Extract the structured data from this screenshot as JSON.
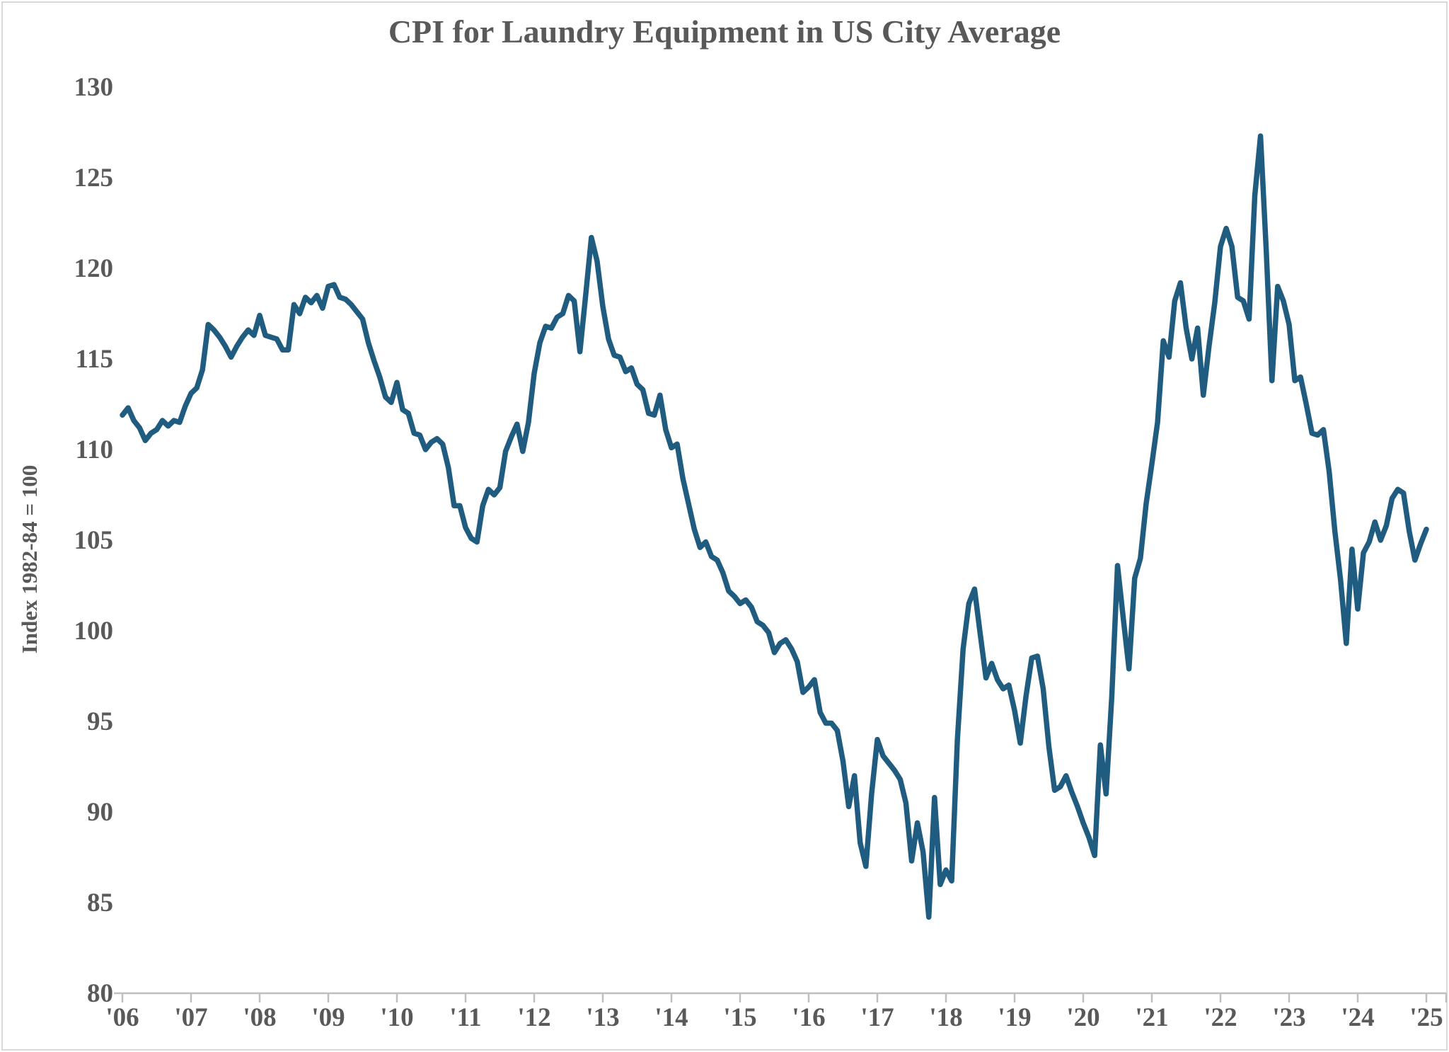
{
  "title": "CPI for Laundry Equipment in US City Average",
  "colors": {
    "line": "#1F5C80",
    "text": "#595959",
    "axis": "#BFBFBF",
    "frame": "#D9D9D9",
    "background": "#FFFFFF"
  },
  "y_axis": {
    "label": "Index 1982-84 = 100",
    "min": 80,
    "max": 130,
    "tick_step": 5,
    "tick_labels": [
      "80",
      "85",
      "90",
      "95",
      "100",
      "105",
      "110",
      "115",
      "120",
      "125",
      "130"
    ]
  },
  "x_axis": {
    "start_year": 2006,
    "end_year": 2025,
    "tick_labels": [
      "'06",
      "'07",
      "'08",
      "'09",
      "'10",
      "'11",
      "'12",
      "'13",
      "'14",
      "'15",
      "'16",
      "'17",
      "'18",
      "'19",
      "'20",
      "'21",
      "'22",
      "'23",
      "'24",
      "'25"
    ]
  },
  "chart_data": {
    "type": "line",
    "title": "CPI for Laundry Equipment in US City Average",
    "xlabel": "",
    "ylabel": "Index 1982-84 = 100",
    "ylim": [
      80,
      130
    ],
    "x_start": "2006-01",
    "x_end": "2025-01",
    "frequency": "monthly",
    "grid": false,
    "legend_position": "none",
    "series": [
      {
        "name": "CPI for Laundry Equipment in US City Average",
        "color": "#1F5C80",
        "values": [
          111.9,
          112.3,
          111.6,
          111.2,
          110.5,
          110.9,
          111.1,
          111.6,
          111.3,
          111.6,
          111.5,
          112.4,
          113.1,
          113.4,
          114.4,
          116.9,
          116.6,
          116.2,
          115.7,
          115.1,
          115.7,
          116.2,
          116.6,
          116.3,
          117.4,
          116.3,
          116.2,
          116.1,
          115.5,
          115.5,
          118.0,
          117.5,
          118.4,
          118.1,
          118.5,
          117.8,
          119.0,
          119.1,
          118.4,
          118.3,
          118.0,
          117.6,
          117.2,
          115.9,
          114.9,
          114.0,
          112.9,
          112.6,
          113.7,
          112.2,
          112.0,
          110.9,
          110.8,
          110.0,
          110.4,
          110.6,
          110.3,
          109.0,
          106.9,
          106.9,
          105.7,
          105.1,
          104.9,
          106.9,
          107.8,
          107.5,
          107.9,
          109.9,
          110.7,
          111.4,
          109.9,
          111.5,
          114.2,
          115.9,
          116.8,
          116.7,
          117.3,
          117.5,
          118.5,
          118.2,
          115.4,
          118.5,
          121.7,
          120.4,
          117.9,
          116.1,
          115.2,
          115.1,
          114.3,
          114.5,
          113.6,
          113.3,
          112.0,
          111.9,
          113.0,
          111.1,
          110.1,
          110.3,
          108.4,
          107.0,
          105.6,
          104.6,
          104.9,
          104.1,
          103.9,
          103.2,
          102.2,
          101.9,
          101.5,
          101.7,
          101.3,
          100.5,
          100.3,
          99.9,
          98.8,
          99.3,
          99.5,
          99.0,
          98.3,
          96.6,
          96.9,
          97.3,
          95.5,
          94.9,
          94.9,
          94.5,
          92.8,
          90.3,
          92.0,
          88.3,
          87.0,
          91.0,
          94.0,
          93.1,
          92.7,
          92.3,
          91.8,
          90.5,
          87.3,
          89.4,
          87.8,
          84.2,
          90.8,
          86.0,
          86.8,
          86.2,
          94.0,
          99.0,
          101.5,
          102.3,
          99.8,
          97.4,
          98.2,
          97.3,
          96.8,
          97.0,
          95.6,
          93.8,
          96.4,
          98.5,
          98.6,
          96.8,
          93.6,
          91.2,
          91.4,
          92.0,
          91.1,
          90.3,
          89.4,
          88.6,
          87.6,
          93.7,
          91.0,
          96.4,
          103.6,
          100.7,
          97.9,
          102.9,
          104.0,
          107.0,
          109.2,
          111.5,
          116.0,
          115.1,
          118.2,
          119.2,
          116.7,
          115.0,
          116.7,
          113.0,
          115.7,
          118.1,
          121.2,
          122.2,
          121.2,
          118.4,
          118.2,
          117.2,
          124.0,
          127.3,
          121.0,
          113.8,
          119.0,
          118.2,
          116.9,
          113.8,
          114.0,
          112.5,
          110.9,
          110.8,
          111.1,
          108.8,
          105.5,
          102.8,
          99.3,
          104.5,
          101.2,
          104.3,
          104.9,
          106.0,
          105.0,
          105.8,
          107.3,
          107.8,
          107.6,
          105.5,
          103.9,
          104.8,
          105.6
        ]
      }
    ]
  }
}
